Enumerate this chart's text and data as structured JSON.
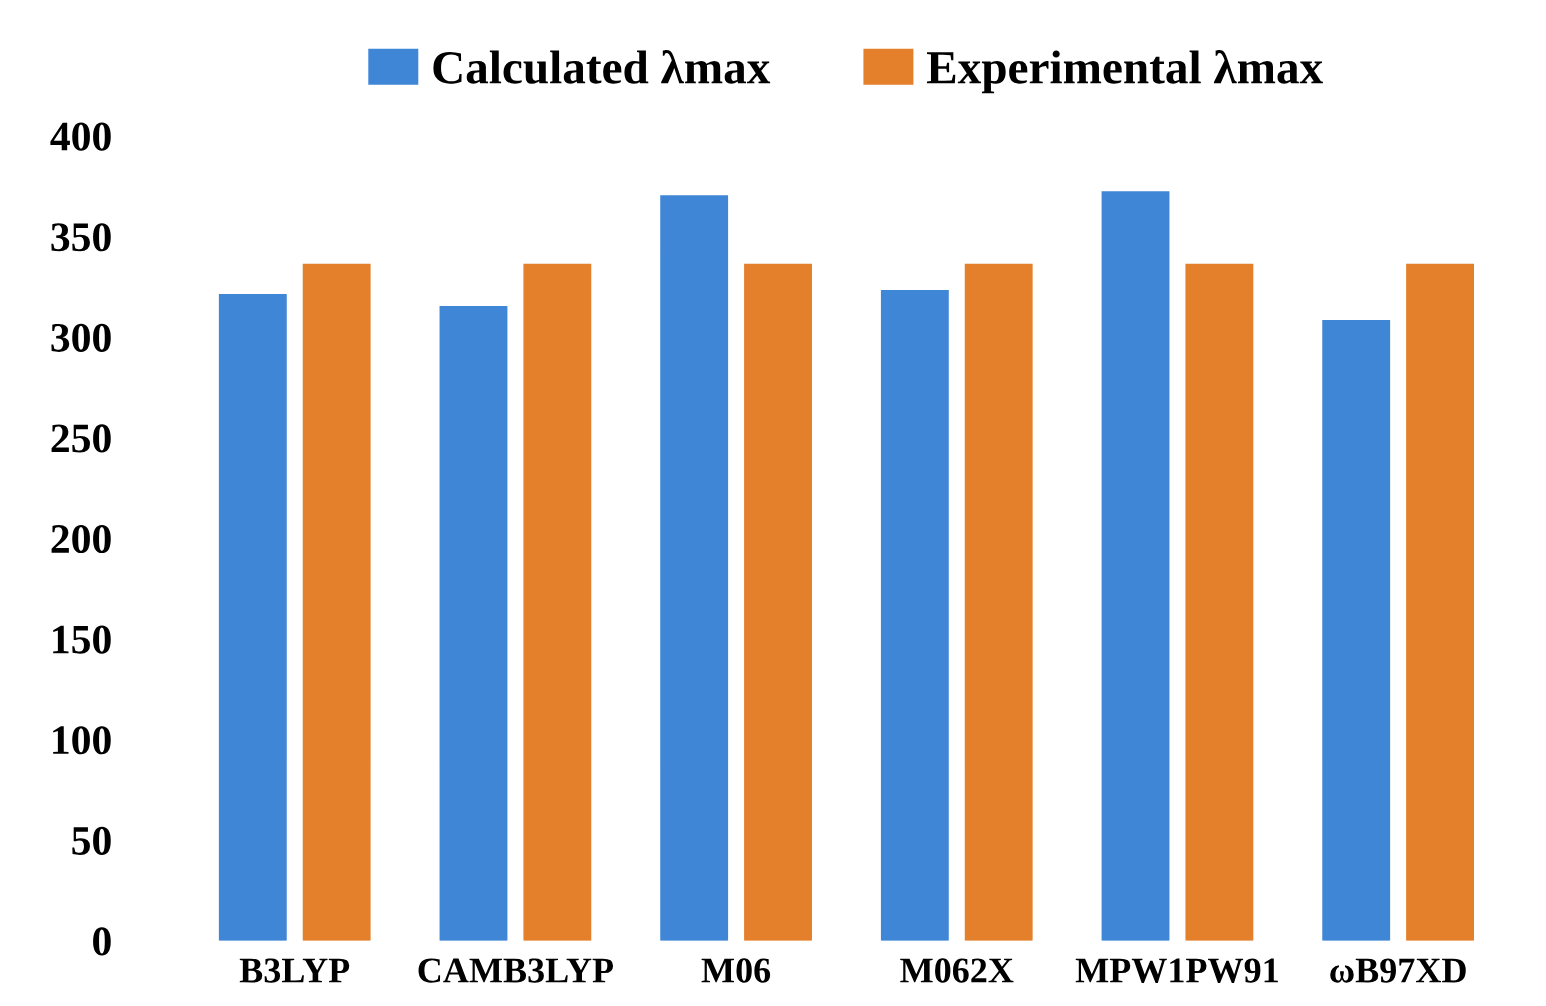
{
  "chart_data": {
    "type": "bar",
    "categories": [
      "B3LYP",
      "CAMB3LYP",
      "M06",
      "M062X",
      "MPW1PW91",
      "ωB97XD"
    ],
    "series": [
      {
        "name": "Calculated λmax",
        "color": "#3f86d6",
        "values": [
          321,
          315,
          370,
          323,
          372,
          308
        ]
      },
      {
        "name": "Experimental λmax",
        "color": "#e4802c",
        "values": [
          336,
          336,
          336,
          336,
          336,
          336
        ]
      }
    ],
    "ylim": [
      0,
      400
    ],
    "yticks": [
      0,
      50,
      100,
      150,
      200,
      250,
      300,
      350,
      400
    ],
    "grid": false,
    "legend": "top"
  }
}
